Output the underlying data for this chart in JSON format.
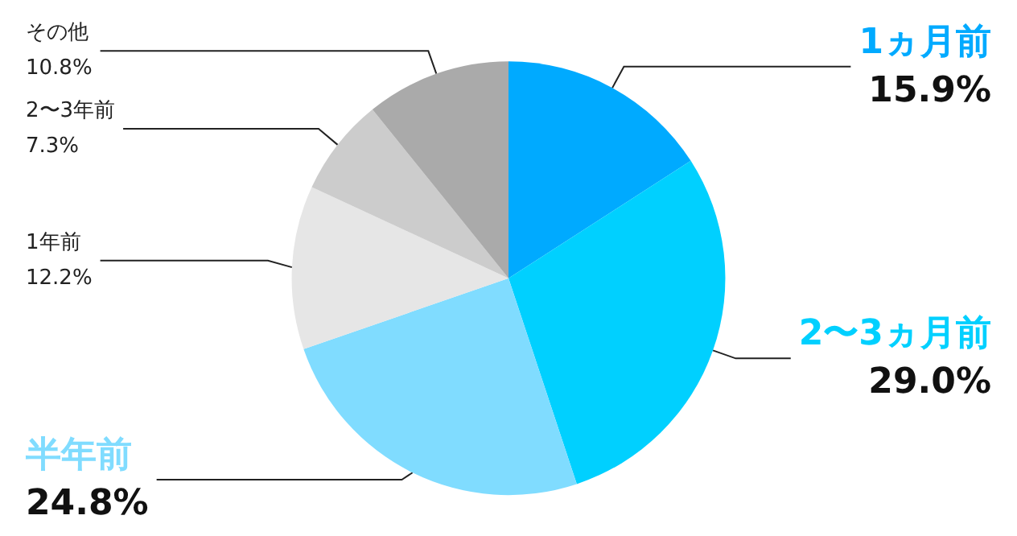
{
  "chart_data": {
    "type": "pie",
    "categories": [
      "1ヵ月前",
      "2〜3ヵ月前",
      "半年前",
      "1年前",
      "2〜3年前",
      "その他"
    ],
    "values": [
      15.9,
      29.0,
      24.8,
      12.2,
      7.3,
      10.8
    ],
    "colors": [
      "#00aaff",
      "#00d0ff",
      "#80dcff",
      "#e6e6e6",
      "#cccccc",
      "#aaaaaa"
    ],
    "value_labels": [
      "15.9%",
      "29.0%",
      "24.8%",
      "12.2%",
      "7.3%",
      "10.8%"
    ]
  }
}
